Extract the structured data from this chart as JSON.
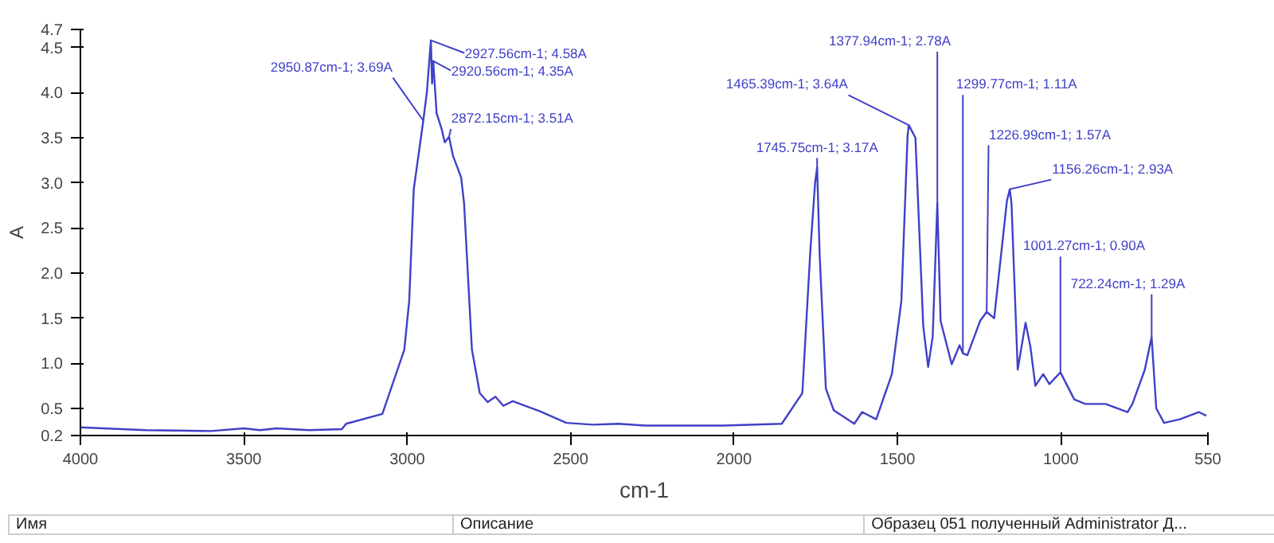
{
  "chart_data": {
    "type": "line",
    "xlabel": "cm-1",
    "ylabel": "A",
    "xlim": [
      4000,
      550
    ],
    "ylim": [
      0.2,
      4.7
    ],
    "xticks": [
      4000,
      3500,
      3000,
      2500,
      2000,
      1500,
      1000,
      550
    ],
    "yticks": [
      0.2,
      0.5,
      {
        "value": 1,
        "label": "1.0"
      },
      1.5,
      {
        "value": 2,
        "label": "2.0"
      },
      2.5,
      {
        "value": 3,
        "label": "3.0"
      },
      3.5,
      {
        "value": 4,
        "label": "4.0"
      },
      4.5,
      4.7
    ],
    "grid": false,
    "x": [
      4000,
      3800,
      3600,
      3500,
      3450,
      3400,
      3300,
      3200,
      3187,
      3076,
      3009,
      2994,
      2980,
      2950.87,
      2940,
      2927.56,
      2924,
      2920.56,
      2910,
      2895,
      2885,
      2872.15,
      2860,
      2835,
      2826,
      2802,
      2778,
      2754,
      2730,
      2706,
      2677,
      2595,
      2513,
      2432,
      2354,
      2272,
      2032,
      1854,
      1791,
      1767,
      1752,
      1745.75,
      1738,
      1719,
      1695,
      1632,
      1608,
      1565,
      1517,
      1488,
      1469,
      1465.39,
      1445,
      1421,
      1406,
      1392,
      1377.94,
      1368,
      1334,
      1310,
      1299.77,
      1286,
      1247,
      1226.99,
      1204,
      1165,
      1156.26,
      1151,
      1132,
      1108,
      1093,
      1078,
      1054,
      1035,
      1001.27,
      959,
      925,
      863,
      796,
      781,
      743,
      722.24,
      708,
      684,
      636,
      578,
      555
    ],
    "series": [
      {
        "color": "#4040c8",
        "values": [
          0.29,
          0.26,
          0.25,
          0.28,
          0.26,
          0.28,
          0.26,
          0.27,
          0.33,
          0.44,
          1.15,
          1.69,
          2.93,
          3.69,
          4.0,
          4.58,
          4.1,
          4.35,
          3.77,
          3.6,
          3.45,
          3.51,
          3.3,
          3.06,
          2.77,
          1.15,
          0.67,
          0.57,
          0.63,
          0.53,
          0.58,
          0.47,
          0.34,
          0.32,
          0.33,
          0.31,
          0.31,
          0.33,
          0.67,
          2.22,
          3.0,
          3.17,
          2.2,
          0.72,
          0.48,
          0.33,
          0.46,
          0.38,
          0.88,
          1.69,
          3.52,
          3.64,
          3.5,
          1.41,
          0.96,
          1.3,
          2.78,
          1.47,
          0.99,
          1.2,
          1.11,
          1.09,
          1.47,
          1.57,
          1.5,
          2.8,
          2.93,
          2.77,
          0.93,
          1.45,
          1.18,
          0.75,
          0.88,
          0.77,
          0.9,
          0.6,
          0.55,
          0.55,
          0.46,
          0.55,
          0.93,
          1.29,
          0.5,
          0.34,
          0.38,
          0.46,
          0.42
        ]
      }
    ],
    "annotations": [
      {
        "text": "2950.87cm-1; 3.69A",
        "x": 2950.87,
        "y": 3.69
      },
      {
        "text": "2927.56cm-1; 4.58A",
        "x": 2927.56,
        "y": 4.58
      },
      {
        "text": "2920.56cm-1; 4.35A",
        "x": 2920.56,
        "y": 4.35
      },
      {
        "text": "2872.15cm-1; 3.51A",
        "x": 2872.15,
        "y": 3.51
      },
      {
        "text": "1745.75cm-1; 3.17A",
        "x": 1745.75,
        "y": 3.17
      },
      {
        "text": "1465.39cm-1; 3.64A",
        "x": 1465.39,
        "y": 3.64
      },
      {
        "text": "1377.94cm-1; 2.78A",
        "x": 1377.94,
        "y": 2.78
      },
      {
        "text": "1299.77cm-1; 1.11A",
        "x": 1299.77,
        "y": 1.11
      },
      {
        "text": "1226.99cm-1; 1.57A",
        "x": 1226.99,
        "y": 1.57
      },
      {
        "text": "1156.26cm-1; 2.93A",
        "x": 1156.26,
        "y": 2.93
      },
      {
        "text": "1001.27cm-1; 0.90A",
        "x": 1001.27,
        "y": 0.9
      },
      {
        "text": "722.24cm-1; 1.29A",
        "x": 722.24,
        "y": 1.29
      },
      "Имя",
      "Описание",
      "Образец 051 полученный Administrator Д..."
    ]
  }
}
